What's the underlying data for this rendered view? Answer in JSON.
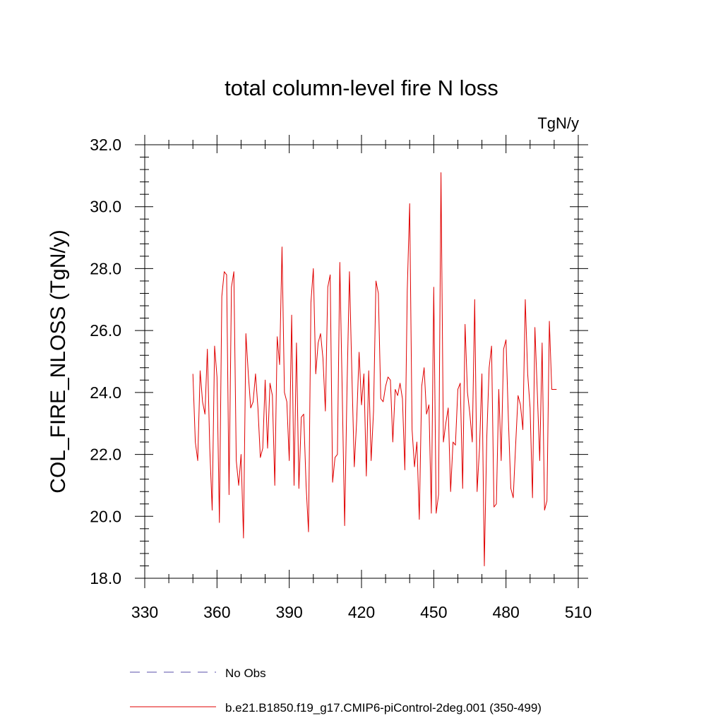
{
  "chart_data": {
    "type": "line",
    "title": "total column-level fire N loss",
    "units_label": "TgN/y",
    "xlabel": "",
    "ylabel": "COL_FIRE_NLOSS  (TgN/y)",
    "xlim": [
      330,
      510
    ],
    "ylim": [
      18,
      32
    ],
    "x_ticks": [
      330,
      360,
      390,
      420,
      450,
      480,
      510
    ],
    "x_tick_labels": [
      "330",
      "360",
      "390",
      "420",
      "450",
      "480",
      "510"
    ],
    "y_ticks": [
      18,
      20,
      22,
      24,
      26,
      28,
      30,
      32
    ],
    "y_tick_labels": [
      "18.0",
      "20.0",
      "22.0",
      "24.0",
      "26.0",
      "28.0",
      "30.0",
      "32.0"
    ],
    "grid": false,
    "legend_position": "bottom-left",
    "series": [
      {
        "name": "No Obs",
        "color": "#5a4fa8",
        "dash": "dashed",
        "x": [],
        "values": []
      },
      {
        "name": "b.e21.B1850.f19_g17.CMIP6-piControl-2deg.001 (350-499)",
        "color": "#e00000",
        "dash": "solid",
        "x_start": 350,
        "x_step": 1,
        "values": [
          24.6,
          22.4,
          21.8,
          24.7,
          23.7,
          23.3,
          25.4,
          22.2,
          20.2,
          25.5,
          24.5,
          19.8,
          27.1,
          27.9,
          27.8,
          20.7,
          27.4,
          27.9,
          21.8,
          21.0,
          22.0,
          19.3,
          25.9,
          24.6,
          23.5,
          23.7,
          24.6,
          23.5,
          21.9,
          22.2,
          24.4,
          22.2,
          24.3,
          23.9,
          21.0,
          25.8,
          24.9,
          28.7,
          24.0,
          23.7,
          21.8,
          26.5,
          21.0,
          25.6,
          20.9,
          23.2,
          23.3,
          21.0,
          19.5,
          26.9,
          28.0,
          24.6,
          25.6,
          25.9,
          25.1,
          23.4,
          27.4,
          27.8,
          21.1,
          21.9,
          22.0,
          28.2,
          24.0,
          19.7,
          24.2,
          27.9,
          24.6,
          21.6,
          23.1,
          25.3,
          23.6,
          24.6,
          21.3,
          24.7,
          21.8,
          23.4,
          27.6,
          27.2,
          23.8,
          23.7,
          24.2,
          24.5,
          24.4,
          22.4,
          24.1,
          23.9,
          24.3,
          23.8,
          21.5,
          27.3,
          30.1,
          22.8,
          21.6,
          22.4,
          19.9,
          24.2,
          24.8,
          23.3,
          23.6,
          20.1,
          27.4,
          20.1,
          20.7,
          31.1,
          22.4,
          23.0,
          23.5,
          20.8,
          22.4,
          22.3,
          24.1,
          24.3,
          20.9,
          26.2,
          24.0,
          23.3,
          22.4,
          27.0,
          20.8,
          22.2,
          24.6,
          18.4,
          22.5,
          24.8,
          25.5,
          20.3,
          20.4,
          24.1,
          21.8,
          25.4,
          25.7,
          23.1,
          20.9,
          20.6,
          22.3,
          23.9,
          23.6,
          22.8,
          27.0,
          24.6,
          23.5,
          20.6,
          26.1,
          24.0,
          21.8,
          25.6,
          20.2,
          20.5,
          26.3,
          24.1,
          24.1,
          24.1
        ]
      }
    ]
  }
}
